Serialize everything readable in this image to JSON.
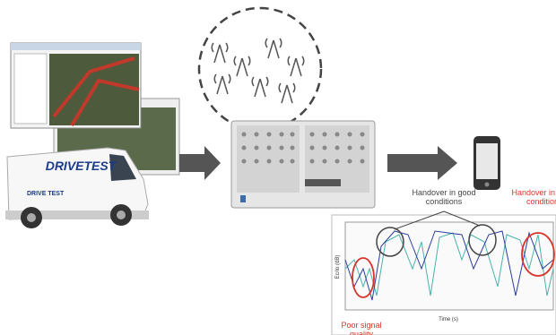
{
  "van": {
    "logo": "DRIVETEST",
    "side_logo": "DRIVE TEST"
  },
  "annotations": {
    "good_handover": "Handover in good conditions",
    "poor_handover": "Handover in poor condition",
    "poor_signal": "Poor signal quality"
  },
  "graph": {
    "y_label": "Ec/Io (dB)",
    "x_label": "Time (s)"
  }
}
